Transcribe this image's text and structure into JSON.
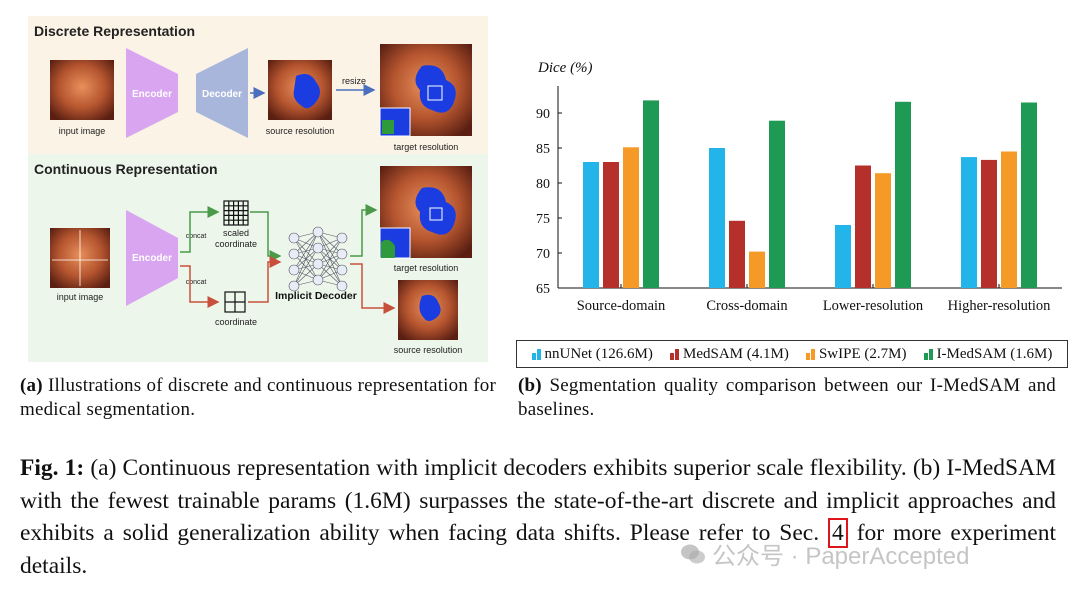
{
  "panel_a": {
    "discrete_title": "Discrete Representation",
    "continuous_title": "Continuous Representation",
    "encoder": "Encoder",
    "decoder": "Decoder",
    "input_image": "input image",
    "source_resolution": "source resolution",
    "target_resolution": "target resolution",
    "resize": "resize",
    "concat": "concat",
    "scaled_coordinate": "scaled coordinate",
    "coordinate": "coordinate",
    "implicit_decoder": "Implicit Decoder",
    "colors": {
      "discrete_bg": "#fbf3e6",
      "continuous_bg": "#ecf6ea",
      "encoder": "#d9a4f0",
      "decoder": "#a9b6dc"
    }
  },
  "chart_data": {
    "type": "bar",
    "ylabel": "Dice (%)",
    "ylim": [
      65,
      93
    ],
    "yticks": [
      65,
      70,
      75,
      80,
      85,
      90
    ],
    "grid": false,
    "categories": [
      "Source-domain",
      "Cross-domain",
      "Lower-resolution",
      "Higher-resolution"
    ],
    "series": [
      {
        "name": "nnUNet (126.6M)",
        "color": "#23b5ea",
        "values": [
          83.0,
          85.0,
          74.0,
          83.7
        ]
      },
      {
        "name": "MedSAM (4.1M)",
        "color": "#b5302a",
        "values": [
          83.0,
          74.6,
          82.5,
          83.3
        ]
      },
      {
        "name": "SwIPE (2.7M)",
        "color": "#f59a26",
        "values": [
          85.1,
          70.2,
          81.4,
          84.5
        ]
      },
      {
        "name": "I-MedSAM (1.6M)",
        "color": "#1f9a55",
        "values": [
          91.8,
          88.9,
          91.6,
          91.5
        ]
      }
    ],
    "legend_position": "bottom"
  },
  "captions": {
    "a_label": "(a)",
    "a_text": "Illustrations of discrete and continuous representation for medical segmentation.",
    "b_label": "(b)",
    "b_text": "Segmentation quality comparison between our I-MedSAM and baselines."
  },
  "figure": {
    "label": "Fig. 1:",
    "text_before": "(a) Continuous representation with implicit decoders exhibits superior scale flexibility. (b) I-MedSAM with the fewest trainable params (1.6M) surpasses the state-of-the-art discrete and implicit approaches and exhibits a solid generalization ability when facing data shifts. Please refer to Sec.",
    "ref": "4",
    "text_after": "for more experiment details."
  },
  "watermark": "公众号 · PaperAccepted"
}
